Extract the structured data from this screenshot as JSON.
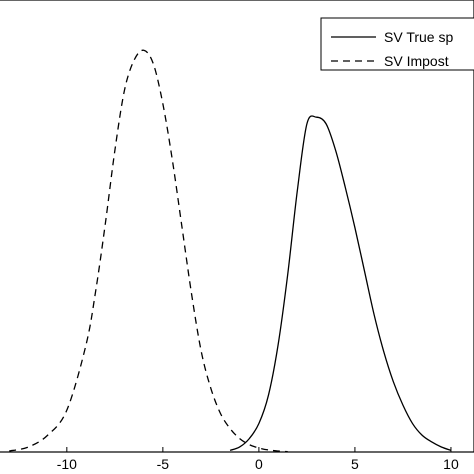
{
  "chart_data": {
    "type": "line",
    "title": "",
    "xlabel": "",
    "ylabel": "",
    "xlim": [
      -14,
      11.2
    ],
    "ylim": [
      0,
      0.135
    ],
    "x_ticks": [
      {
        "value": -10,
        "label": "-10"
      },
      {
        "value": -5,
        "label": "-5"
      },
      {
        "value": 0,
        "label": "0"
      },
      {
        "value": 5,
        "label": "5"
      },
      {
        "value": 10,
        "label": "10"
      }
    ],
    "grid": false,
    "legend_position": "top-right",
    "series": [
      {
        "name": "SV True sp",
        "style": "solid",
        "color": "#000000",
        "x": [
          -1.5,
          -1,
          -0.5,
          0,
          0.5,
          1,
          1.5,
          2,
          2.5,
          3,
          3.5,
          4,
          4.5,
          5,
          5.5,
          6,
          6.5,
          7,
          7.5,
          8,
          8.5,
          9,
          9.5,
          10
        ],
        "y": [
          0.0005,
          0.0015,
          0.004,
          0.0085,
          0.017,
          0.032,
          0.053,
          0.078,
          0.098,
          0.1,
          0.098,
          0.09,
          0.079,
          0.067,
          0.054,
          0.041,
          0.03,
          0.021,
          0.014,
          0.0085,
          0.005,
          0.003,
          0.0015,
          0.0005
        ]
      },
      {
        "name": "SV Impost",
        "style": "dashed",
        "color": "#000000",
        "x": [
          -13,
          -12,
          -11,
          -10,
          -9,
          -8.5,
          -8,
          -7.5,
          -7,
          -6.5,
          -6,
          -5.5,
          -5,
          -4.5,
          -4,
          -3.5,
          -3,
          -2.5,
          -2,
          -1.5,
          -1,
          -0.5,
          0,
          0.5,
          1,
          1.5
        ],
        "y": [
          0.0003,
          0.0015,
          0.005,
          0.0125,
          0.032,
          0.048,
          0.068,
          0.09,
          0.108,
          0.117,
          0.12,
          0.116,
          0.104,
          0.087,
          0.067,
          0.047,
          0.03,
          0.019,
          0.0115,
          0.007,
          0.004,
          0.0022,
          0.0012,
          0.0006,
          0.0003,
          0.0001
        ]
      }
    ]
  }
}
